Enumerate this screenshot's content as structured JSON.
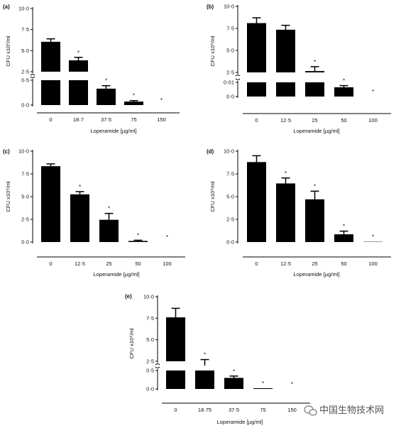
{
  "chart_data": [
    {
      "id": "a",
      "type": "bar",
      "panel_label": "(a)",
      "categories": [
        "0",
        "18·7",
        "37·5",
        "75",
        "150"
      ],
      "values": [
        6.05,
        3.85,
        0.33,
        0.07,
        0
      ],
      "errors": [
        0.35,
        0.35,
        0.06,
        0.02,
        0
      ],
      "significant": [
        false,
        true,
        true,
        true,
        true
      ],
      "axis_break": true,
      "upper_ticks": [
        "2·5",
        "5·0",
        "7·5",
        "10·0"
      ],
      "lower_ticks": [
        "0·0",
        "0·5"
      ],
      "xlabel": "Loperamide [μg/ml]",
      "ylabel": "CFU x10⁶/ml",
      "ylim": [
        0,
        10
      ]
    },
    {
      "id": "b",
      "type": "bar",
      "panel_label": "(b)",
      "categories": [
        "0",
        "12·5",
        "25",
        "50",
        "100"
      ],
      "values": [
        8.1,
        7.35,
        2.65,
        0.0065,
        0
      ],
      "errors": [
        0.6,
        0.5,
        0.5,
        0.0012,
        0
      ],
      "significant": [
        false,
        false,
        true,
        true,
        true
      ],
      "axis_break": true,
      "upper_ticks": [
        "2·5",
        "5·0",
        "7·5",
        "10·0"
      ],
      "lower_ticks": [
        "0·0",
        "0·01"
      ],
      "xlabel": "Loperamide [μg/ml]",
      "ylabel": "CFU x10⁶/ml",
      "ylim": [
        0,
        10
      ]
    },
    {
      "id": "c",
      "type": "bar",
      "panel_label": "(c)",
      "categories": [
        "0",
        "12·5",
        "25",
        "50",
        "100"
      ],
      "values": [
        8.35,
        5.25,
        2.45,
        0.12,
        0
      ],
      "errors": [
        0.25,
        0.3,
        0.7,
        0.08,
        0
      ],
      "significant": [
        false,
        true,
        true,
        true,
        true
      ],
      "axis_break": false,
      "ticks": [
        "0·0",
        "2·5",
        "5·0",
        "7·5",
        "10·0"
      ],
      "xlabel": "Loperamide [μg/ml]",
      "ylabel": "CFU x10⁶/ml",
      "ylim": [
        0,
        10
      ]
    },
    {
      "id": "d",
      "type": "bar",
      "panel_label": "(d)",
      "categories": [
        "0",
        "12·5",
        "25",
        "50",
        "100"
      ],
      "values": [
        8.8,
        6.45,
        4.7,
        0.85,
        0.03
      ],
      "errors": [
        0.7,
        0.6,
        0.9,
        0.35,
        0
      ],
      "significant": [
        false,
        true,
        true,
        true,
        true
      ],
      "axis_break": false,
      "ticks": [
        "0·0",
        "2·5",
        "5·0",
        "7·5",
        "10·0"
      ],
      "xlabel": "Loperamide [μg/ml]",
      "ylabel": "CFU x10⁶/ml",
      "ylim": [
        0,
        10
      ]
    },
    {
      "id": "e",
      "type": "bar",
      "panel_label": "(e)",
      "categories": [
        "0",
        "18·75",
        "37·5",
        "75",
        "150"
      ],
      "values": [
        7.6,
        2.0,
        0.3,
        0.02,
        0
      ],
      "errors": [
        1.05,
        0.7,
        0.05,
        0,
        0
      ],
      "significant": [
        false,
        true,
        true,
        true,
        true
      ],
      "axis_break": true,
      "upper_ticks": [
        "2·5",
        "5·0",
        "7·5",
        "10·0"
      ],
      "lower_ticks": [
        "0·0",
        "0·5"
      ],
      "xlabel": "Loperamide [μg/ml]",
      "ylabel": "CFU x10⁶/ml",
      "ylim": [
        0,
        10
      ]
    }
  ],
  "watermark": {
    "text": "中国生物技术网",
    "icon": "wechat-icon"
  },
  "colors": {
    "bar": "#000000",
    "axis": "#000000",
    "background": "#ffffff"
  }
}
